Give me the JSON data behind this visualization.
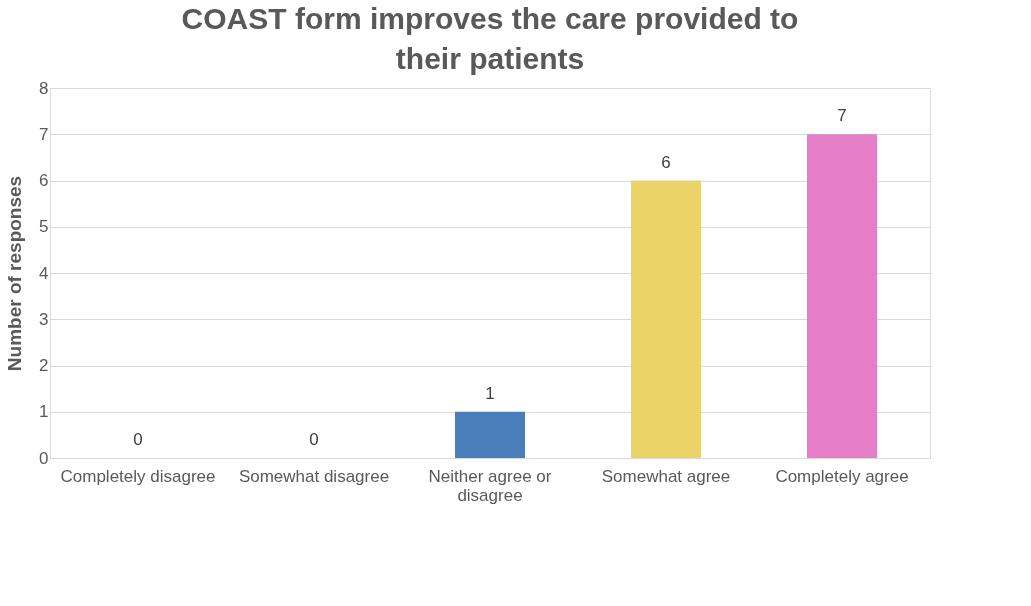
{
  "chart_data": {
    "type": "bar",
    "title": "COAST form improves the care provided to their patients",
    "ylabel": "Number of responses",
    "categories": [
      "Completely disagree",
      "Somewhat disagree",
      "Neither agree or disagree",
      "Somewhat agree",
      "Completely agree"
    ],
    "values": [
      0,
      0,
      1,
      6,
      7
    ],
    "colors": [
      "#4a7ebb",
      "#e07b39",
      "#4a7ebb",
      "#ecd368",
      "#e57ec6"
    ],
    "ylim": [
      0,
      8
    ],
    "yticks": [
      0,
      1,
      2,
      3,
      4,
      5,
      6,
      7,
      8
    ],
    "grid": "y",
    "data_labels": true
  }
}
